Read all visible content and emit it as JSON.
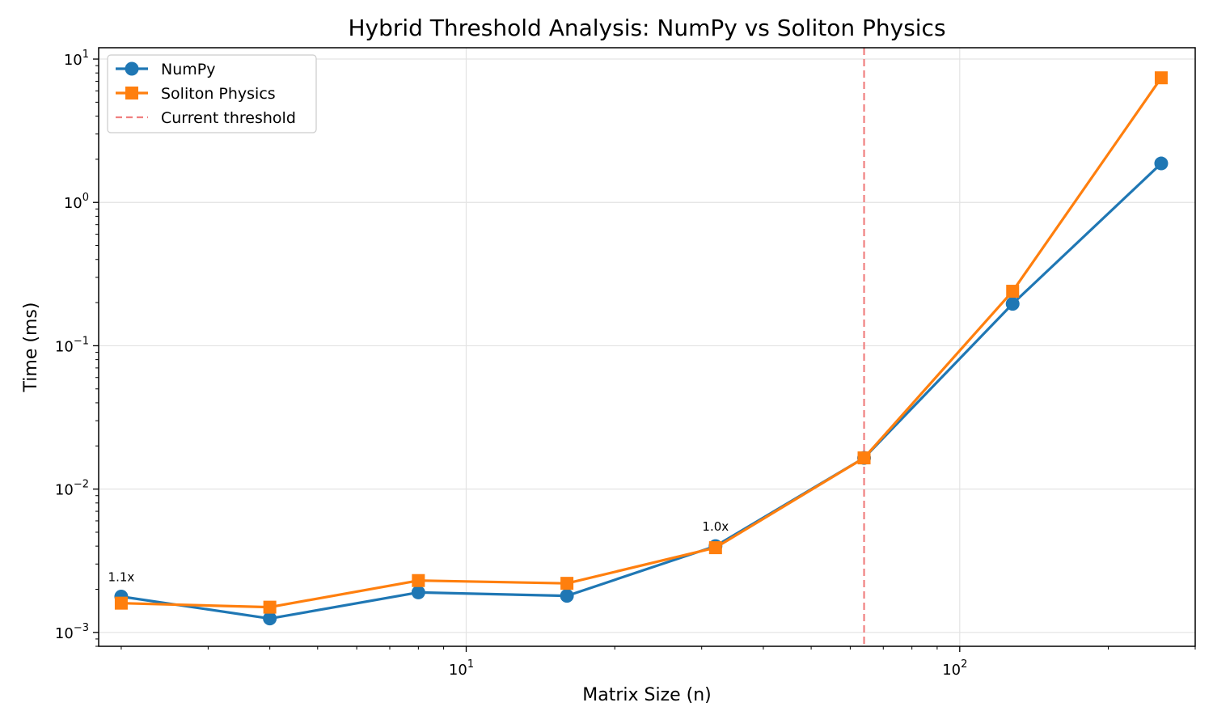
{
  "chart_data": {
    "type": "line",
    "title": "Hybrid Threshold Analysis: NumPy vs Soliton Physics",
    "xlabel": "Matrix Size (n)",
    "ylabel": "Time (ms)",
    "xscale": "log",
    "yscale": "log",
    "xlim": [
      1.8,
      300
    ],
    "ylim": [
      0.0008,
      12
    ],
    "grid": true,
    "legend_position": "top-left",
    "x": [
      2,
      4,
      8,
      16,
      32,
      64,
      128,
      256
    ],
    "series": [
      {
        "name": "NumPy",
        "color": "#1f77b4",
        "marker": "circle",
        "values": [
          0.00178,
          0.00125,
          0.0019,
          0.0018,
          0.004,
          0.0165,
          0.196,
          1.87
        ]
      },
      {
        "name": "Soliton Physics",
        "color": "#ff7f0e",
        "marker": "square",
        "values": [
          0.0016,
          0.0015,
          0.0023,
          0.0022,
          0.0039,
          0.0165,
          0.24,
          7.4
        ]
      }
    ],
    "threshold": {
      "name": "Current threshold",
      "x": 64,
      "color": "#f08080",
      "style": "dashed"
    },
    "x_ticks": [
      {
        "value": 10,
        "base": "10",
        "exp": "1"
      },
      {
        "value": 100,
        "base": "10",
        "exp": "2"
      }
    ],
    "y_ticks": [
      {
        "value": 0.001,
        "base": "10",
        "exp": "−3"
      },
      {
        "value": 0.01,
        "base": "10",
        "exp": "−2"
      },
      {
        "value": 0.1,
        "base": "10",
        "exp": "−1"
      },
      {
        "value": 1,
        "base": "10",
        "exp": "0"
      },
      {
        "value": 10,
        "base": "10",
        "exp": "1"
      }
    ],
    "annotations": [
      {
        "x": 2,
        "y": 0.00178,
        "text": "1.1x"
      },
      {
        "x": 32,
        "y": 0.004,
        "text": "1.0x"
      }
    ]
  }
}
